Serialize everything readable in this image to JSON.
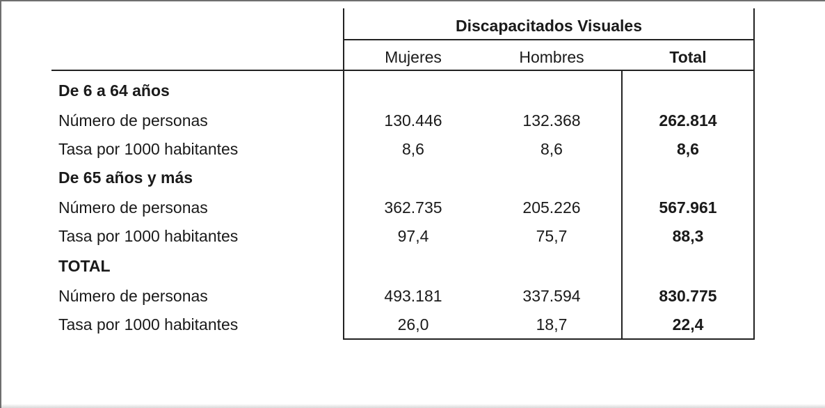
{
  "table": {
    "group_header": "Discapacitados Visuales",
    "columns": [
      "Mujeres",
      "Hombres",
      "Total"
    ],
    "sections": [
      {
        "title": "De 6 a 64 años",
        "rows": [
          {
            "label": "Número de personas",
            "mujeres": "130.446",
            "hombres": "132.368",
            "total": "262.814"
          },
          {
            "label": "Tasa por 1000 habitantes",
            "mujeres": "8,6",
            "hombres": "8,6",
            "total": "8,6"
          }
        ]
      },
      {
        "title": "De 65 años y más",
        "rows": [
          {
            "label": "Número de personas",
            "mujeres": "362.735",
            "hombres": "205.226",
            "total": "567.961"
          },
          {
            "label": "Tasa por 1000 habitantes",
            "mujeres": "97,4",
            "hombres": "75,7",
            "total": "88,3"
          }
        ]
      },
      {
        "title": "TOTAL",
        "rows": [
          {
            "label": "Número de personas",
            "mujeres": "493.181",
            "hombres": "337.594",
            "total": "830.775"
          },
          {
            "label": "Tasa por 1000 habitantes",
            "mujeres": "26,0",
            "hombres": "18,7",
            "total": "22,4"
          }
        ]
      }
    ]
  }
}
